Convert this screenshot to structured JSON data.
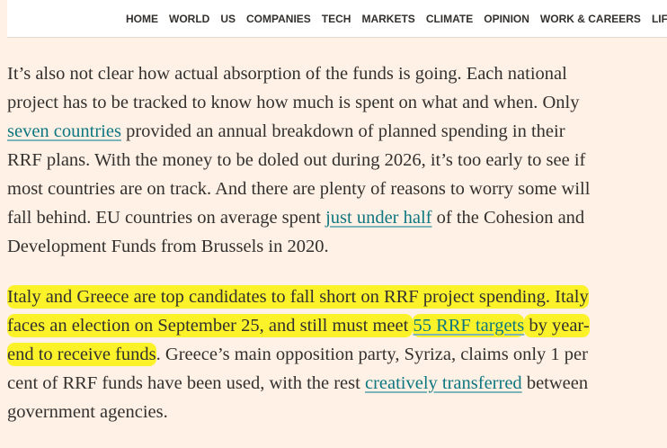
{
  "nav": {
    "items": [
      "HOME",
      "WORLD",
      "US",
      "COMPANIES",
      "TECH",
      "MARKETS",
      "CLIMATE",
      "OPINION",
      "WORK & CAREERS",
      "LIFE &"
    ]
  },
  "article": {
    "paragraphs": [
      {
        "lines": [
          [
            {
              "text": "It’s also not clear how actual absorption of the funds is going. Each national"
            }
          ],
          [
            {
              "text": "project has to be tracked to know how much is spent on what and when. Only"
            }
          ],
          [
            {
              "text": "seven countries",
              "link": true
            },
            {
              "text": " provided an annual breakdown of planned spending in their"
            }
          ],
          [
            {
              "text": "RRF plans. With the money to be doled out during 2026, it’s too early to see if"
            }
          ],
          [
            {
              "text": "most countries are on track. And there are plenty of reasons to worry some will"
            }
          ],
          [
            {
              "text": "fall behind. EU countries on average spent "
            },
            {
              "text": "just under half",
              "link": true
            },
            {
              "text": " of the Cohesion and"
            }
          ],
          [
            {
              "text": "Development Funds from Brussels in 2020."
            }
          ]
        ]
      },
      {
        "lines": [
          [
            {
              "text": "Italy and Greece are top candidates to fall short on RRF project spending. Italy",
              "highlight": true
            }
          ],
          [
            {
              "text": "faces an election on September 25, and still must meet ",
              "highlight": true
            },
            {
              "text": "55 RRF targets",
              "link": true,
              "highlight": true
            },
            {
              "text": " by year-",
              "highlight": true
            }
          ],
          [
            {
              "text": "end to receive funds",
              "highlight": true
            },
            {
              "text": ". Greece’s main opposition party, Syriza, claims only 1 per"
            }
          ],
          [
            {
              "text": "cent of RRF funds have been used, with the rest "
            },
            {
              "text": "creatively transferred",
              "link": true
            },
            {
              "text": " between"
            }
          ],
          [
            {
              "text": "government agencies."
            }
          ]
        ]
      }
    ]
  }
}
